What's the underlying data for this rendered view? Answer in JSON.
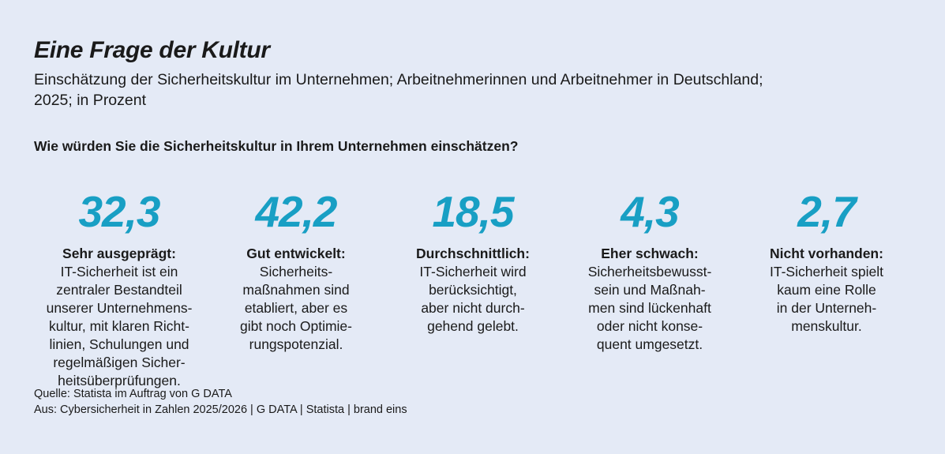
{
  "header": {
    "title": "Eine Frage der Kultur",
    "subtitle": "Einschätzung der Sicherheitskultur im Unternehmen; Arbeitnehmerinnen und Arbeitnehmer in Deutschland;\n2025; in Prozent",
    "question": "Wie würden Sie die Sicherheitskultur in Ihrem Unternehmen einschätzen?"
  },
  "chart_data": {
    "type": "table",
    "title": "Eine Frage der Kultur",
    "subtitle": "Einschätzung der Sicherheitskultur im Unternehmen; Arbeitnehmerinnen und Arbeitnehmer in Deutschland; 2025; in Prozent",
    "question": "Wie würden Sie die Sicherheitskultur in Ihrem Unternehmen einschätzen?",
    "unit": "Prozent",
    "categories": [
      "Sehr ausgeprägt",
      "Gut entwickelt",
      "Durchschnittlich",
      "Eher schwach",
      "Nicht vorhanden"
    ],
    "values": [
      32.3,
      42.2,
      18.5,
      4.3,
      2.7
    ]
  },
  "items": [
    {
      "value": "32,3",
      "label": "Sehr ausgeprägt:",
      "description": "IT-Sicherheit ist ein\nzentraler Bestandteil\nunserer Unternehmens-\nkultur, mit klaren Richt-\nlinien, Schulungen und\nregelmäßigen Sicher-\nheitsüberprüfungen."
    },
    {
      "value": "42,2",
      "label": "Gut entwickelt:",
      "description": "Sicherheits-\nmaßnahmen sind\netabliert, aber es\ngibt noch Optimie-\nrungspotenzial."
    },
    {
      "value": "18,5",
      "label": "Durchschnittlich:",
      "description": "IT-Sicherheit wird\nberücksichtigt,\naber nicht durch-\ngehend gelebt."
    },
    {
      "value": "4,3",
      "label": "Eher schwach:",
      "description": "Sicherheitsbewusst-\nsein und Maßnah-\nmen sind lückenhaft\noder nicht konse-\nquent umgesetzt."
    },
    {
      "value": "2,7",
      "label": "Nicht vorhanden:",
      "description": "IT-Sicherheit spielt\nkaum eine Rolle\nin der Unterneh-\nmenskultur."
    }
  ],
  "footer": {
    "source": "Quelle: Statista im Auftrag von G DATA",
    "attribution": "Aus: Cybersicherheit in Zahlen 2025/2026 | G DATA | Statista | brand eins"
  },
  "colors": {
    "accent": "#189fc4",
    "background": "#e4eaf6",
    "text": "#1a1a1a"
  }
}
